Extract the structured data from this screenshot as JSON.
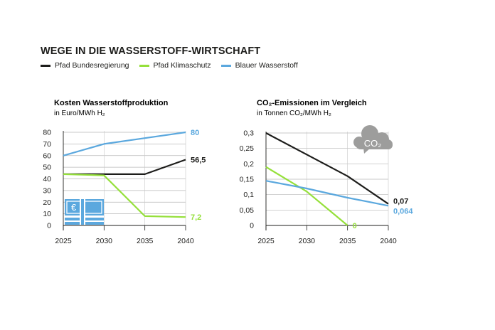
{
  "title": "WEGE IN DIE WASSERSTOFF-WIRTSCHAFT",
  "legend": [
    {
      "name": "Pfad Bundesregierung",
      "color": "#1d1d1b"
    },
    {
      "name": "Pfad Klimaschutz",
      "color": "#95e03a"
    },
    {
      "name": "Blauer Wasserstoff",
      "color": "#5ba8de"
    }
  ],
  "chart_data": [
    {
      "type": "line",
      "title": "Kosten Wasserstoffproduktion",
      "subtitle": "in Euro/MWh H₂",
      "x": [
        "2025",
        "2030",
        "2035",
        "2040"
      ],
      "ylim": [
        0,
        80
      ],
      "yticks": [
        "0",
        "10",
        "20",
        "30",
        "40",
        "50",
        "60",
        "70",
        "80"
      ],
      "grid": true,
      "series": [
        {
          "name": "Pfad Bundesregierung",
          "color": "#1d1d1b",
          "values": [
            44,
            44,
            44,
            56.5
          ],
          "end_label": "56,5"
        },
        {
          "name": "Pfad Klimaschutz",
          "color": "#95e03a",
          "values": [
            44,
            43,
            8,
            7.2
          ],
          "end_label": "7,2"
        },
        {
          "name": "Blauer Wasserstoff",
          "color": "#5ba8de",
          "values": [
            60,
            70,
            75,
            80
          ],
          "end_label": "80"
        }
      ],
      "icon": "euro-banknotes-icon"
    },
    {
      "type": "line",
      "title": "CO₂-Emissionen im Vergleich",
      "subtitle": "in Tonnen CO₂/MWh H₂",
      "x": [
        "2025",
        "2030",
        "2035",
        "2040"
      ],
      "ylim": [
        0,
        0.3
      ],
      "yticks": [
        "0",
        "0,05",
        "0,1",
        "0,15",
        "0,2",
        "0,25",
        "0,3"
      ],
      "grid": true,
      "series": [
        {
          "name": "Pfad Bundesregierung",
          "color": "#1d1d1b",
          "values": [
            0.3,
            0.23,
            0.16,
            0.07
          ],
          "end_label": "0,07"
        },
        {
          "name": "Pfad Klimaschutz",
          "color": "#95e03a",
          "x": [
            "2025",
            "2030",
            "2035"
          ],
          "values": [
            0.19,
            0.11,
            0
          ],
          "end_label": "0"
        },
        {
          "name": "Blauer Wasserstoff",
          "color": "#5ba8de",
          "values": [
            0.145,
            0.12,
            0.09,
            0.064
          ],
          "end_label": "0,064"
        }
      ],
      "icon": "co2-cloud-icon",
      "icon_text": "CO₂"
    }
  ]
}
